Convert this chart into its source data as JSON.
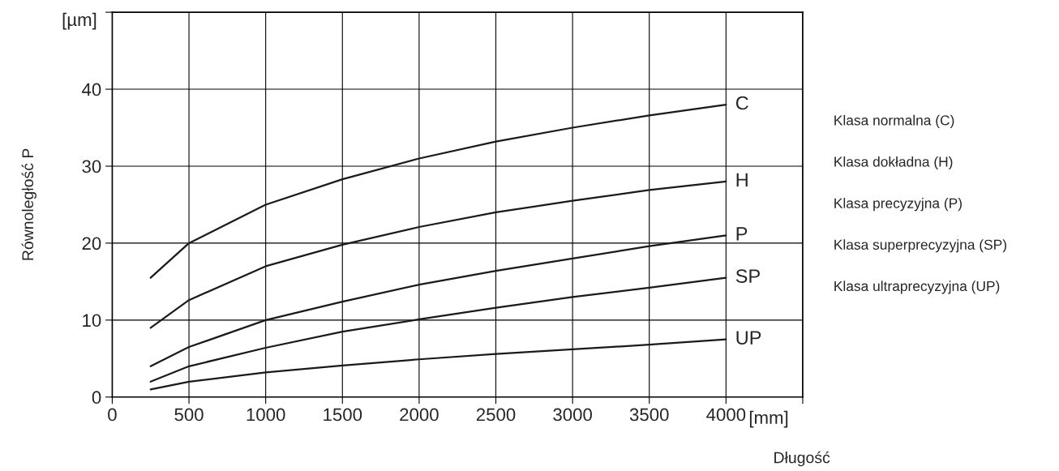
{
  "chart_data": {
    "type": "line",
    "xlabel": "Długość",
    "ylabel": "Równoległość P",
    "x": [
      250,
      500,
      1000,
      1500,
      2000,
      2500,
      3000,
      3500,
      4000
    ],
    "series": [
      {
        "name": "C",
        "color": "#1a1a1a",
        "values": [
          15.5,
          20,
          25,
          28.3,
          31,
          33.2,
          35,
          36.6,
          38
        ]
      },
      {
        "name": "H",
        "color": "#1a1a1a",
        "values": [
          9,
          12.6,
          17,
          19.8,
          22.1,
          24,
          25.5,
          26.9,
          28
        ]
      },
      {
        "name": "P",
        "color": "#1a1a1a",
        "values": [
          4,
          6.5,
          10,
          12.4,
          14.6,
          16.4,
          18,
          19.6,
          21
        ]
      },
      {
        "name": "SP",
        "color": "#1a1a1a",
        "values": [
          2,
          4,
          6.4,
          8.5,
          10.1,
          11.6,
          13,
          14.2,
          15.5
        ]
      },
      {
        "name": "UP",
        "color": "#1a1a1a",
        "values": [
          1,
          2,
          3.2,
          4.1,
          4.9,
          5.6,
          6.2,
          6.8,
          7.5
        ]
      }
    ],
    "xlim": [
      0,
      4500
    ],
    "ylim": [
      0,
      50
    ],
    "xticks": [
      0,
      500,
      1000,
      1500,
      2000,
      2500,
      3000,
      3500,
      4000,
      {
        "value": 4500,
        "label": null
      }
    ],
    "yticks": [
      0,
      10,
      20,
      30,
      40,
      {
        "value": 50,
        "label": null
      }
    ],
    "grid": true,
    "marker": "none",
    "line_style": "solid",
    "annotations": [
      "[µm]",
      "[mm]",
      "Klasa normalna (C)",
      "Klasa dokładna (H)",
      "Klasa precyzyjna (P)",
      "Klasa superprecyzyjna (SP)",
      "Klasa ultraprecyzyjna (UP)"
    ]
  }
}
